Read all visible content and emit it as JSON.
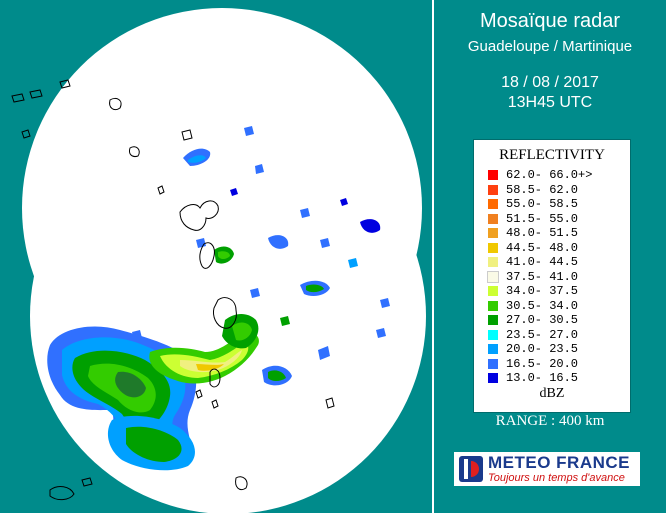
{
  "header": {
    "title": "Mosaïque radar",
    "subtitle": "Guadeloupe / Martinique",
    "date": "18 / 08 / 2017",
    "time": "13H45 UTC"
  },
  "legend": {
    "title": "REFLECTIVITY",
    "unit": "dBZ",
    "items": [
      {
        "label": "62.0- 66.0+>",
        "color": "#ff0000"
      },
      {
        "label": "58.5- 62.0",
        "color": "#ff4010"
      },
      {
        "label": "55.0- 58.5",
        "color": "#ff6a00"
      },
      {
        "label": "51.5- 55.0",
        "color": "#f08020"
      },
      {
        "label": "48.0- 51.5",
        "color": "#f0a020"
      },
      {
        "label": "44.5- 48.0",
        "color": "#f0c800"
      },
      {
        "label": "41.0- 44.5",
        "color": "#f0f080"
      },
      {
        "label": "37.5- 41.0",
        "color": "#fafae6"
      },
      {
        "label": "34.0- 37.5",
        "color": "#ccff33"
      },
      {
        "label": "30.5- 34.0",
        "color": "#33cc00"
      },
      {
        "label": "27.0- 30.5",
        "color": "#00a000"
      },
      {
        "label": "23.5- 27.0",
        "color": "#00ffff"
      },
      {
        "label": "20.0- 23.5",
        "color": "#00a0ff"
      },
      {
        "label": "16.5- 20.0",
        "color": "#3070ff"
      },
      {
        "label": "13.0- 16.5",
        "color": "#0000e0"
      }
    ]
  },
  "range_text": "RANGE : 400 km",
  "logo": {
    "name": "METEO FRANCE",
    "tagline": "Toujours un temps d'avance"
  },
  "colors": {
    "background": "#008b8b",
    "coverage": "#ffffff"
  }
}
